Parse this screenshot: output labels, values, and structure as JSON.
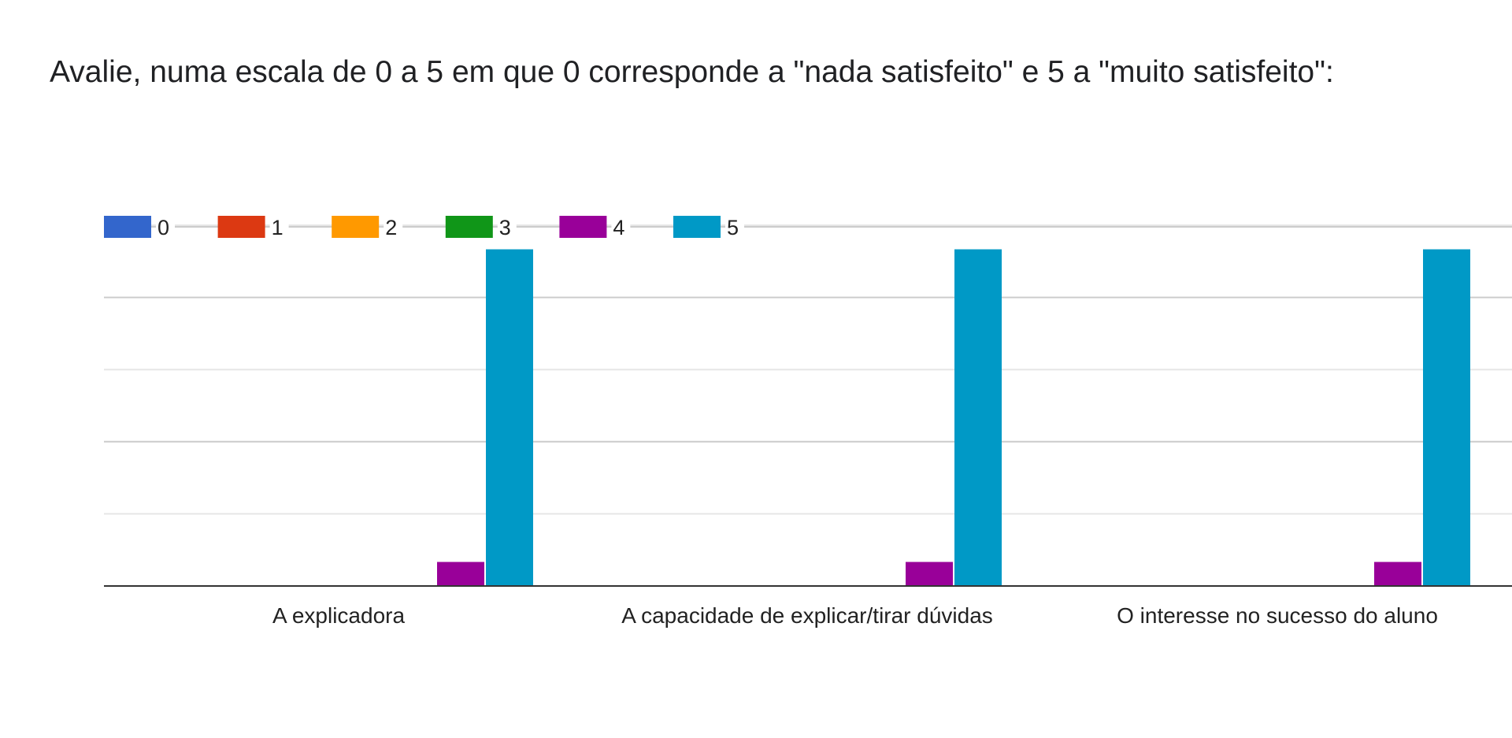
{
  "question": "Avalie, numa escala de 0 a 5 em que 0 corresponde a \"nada satisfeito\" e 5 a \"muito satisfeito\":",
  "chart_data": {
    "type": "bar",
    "categories": [
      "A explicadora",
      "A capacidade de explicar/tirar dúvidas",
      "O interesse no sucesso do aluno"
    ],
    "series": [
      {
        "name": "0",
        "color": "#3366cc",
        "values": [
          0,
          0,
          0
        ]
      },
      {
        "name": "1",
        "color": "#dc3912",
        "values": [
          0,
          0,
          0
        ]
      },
      {
        "name": "2",
        "color": "#ff9900",
        "values": [
          0,
          0,
          0
        ]
      },
      {
        "name": "3",
        "color": "#109618",
        "values": [
          0,
          0,
          0
        ]
      },
      {
        "name": "4",
        "color": "#990099",
        "values": [
          1,
          1,
          1
        ]
      },
      {
        "name": "5",
        "color": "#0099c6",
        "values": [
          14,
          14,
          14
        ]
      }
    ],
    "ylim": [
      0,
      15
    ],
    "legend_position": "top",
    "grid": true
  }
}
